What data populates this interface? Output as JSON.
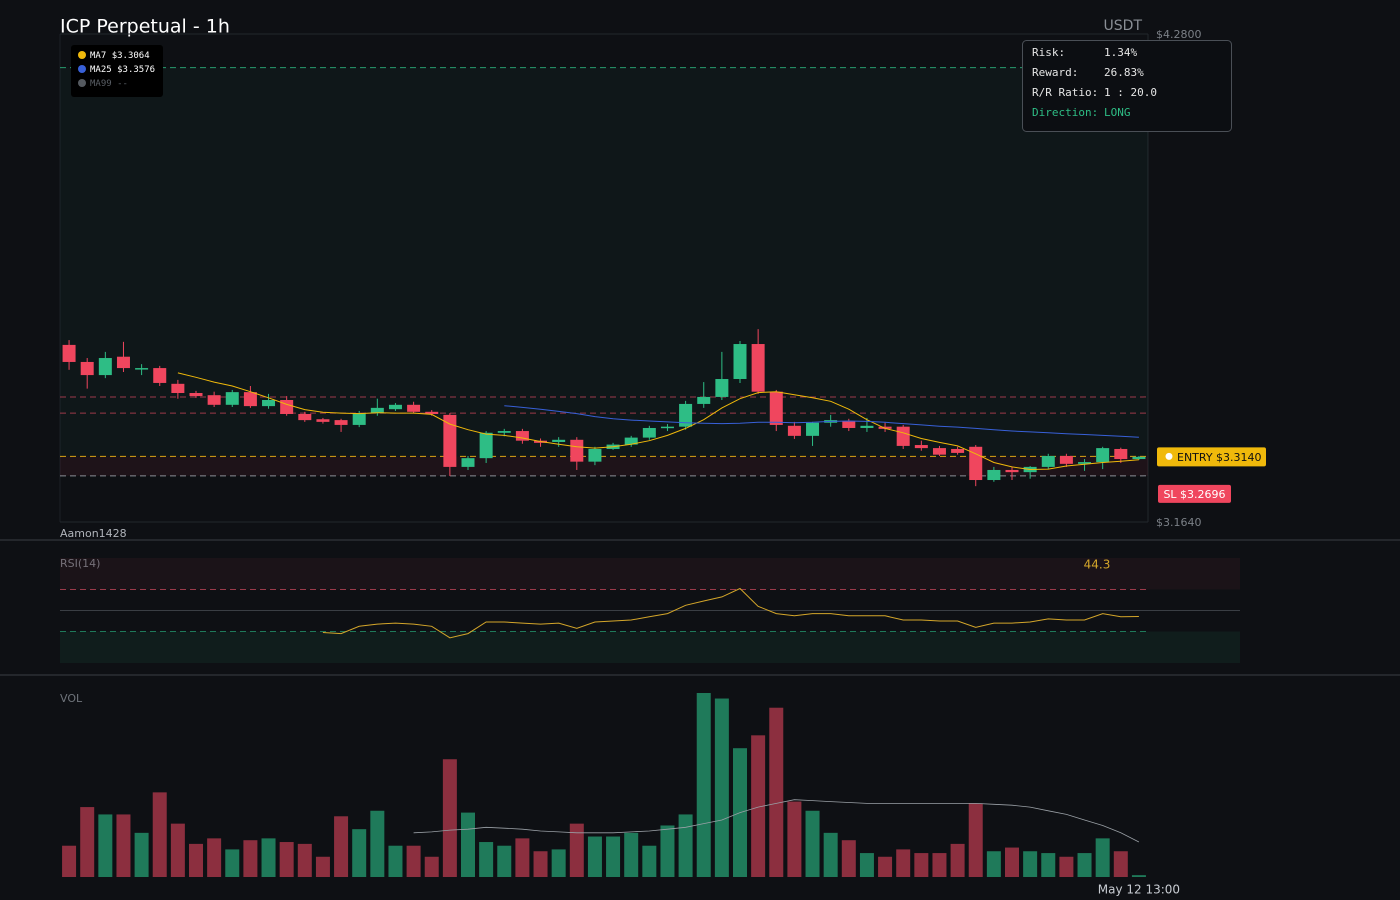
{
  "chart_data": [
    {
      "type": "candlestick",
      "title": "ICP Perpetual - 1h",
      "unit_label": "USDT",
      "watermark": "Aamon1428",
      "categories": [
        null,
        null,
        null,
        null,
        null,
        null,
        null,
        null,
        null,
        null,
        null,
        null,
        null,
        null,
        null,
        null,
        null,
        null,
        null,
        null,
        null,
        null,
        null,
        null,
        null,
        null,
        null,
        null,
        null,
        null,
        null,
        null,
        null,
        null,
        null,
        null,
        null,
        null,
        null,
        null,
        null,
        null,
        null,
        null,
        null,
        null,
        null,
        null,
        null,
        null,
        null,
        null,
        null,
        null,
        null,
        null,
        null,
        null,
        null,
        "May 12 13:00"
      ],
      "open": [
        3.569,
        3.53,
        3.5,
        3.542,
        3.514,
        3.516,
        3.48,
        3.459,
        3.454,
        3.432,
        3.461,
        3.429,
        3.443,
        3.411,
        3.399,
        3.397,
        3.386,
        3.413,
        3.422,
        3.432,
        3.416,
        3.409,
        3.29,
        3.31,
        3.368,
        3.372,
        3.35,
        3.347,
        3.352,
        3.302,
        3.331,
        3.341,
        3.357,
        3.379,
        3.382,
        3.434,
        3.45,
        3.491,
        3.571,
        3.462,
        3.384,
        3.361,
        3.391,
        3.395,
        3.379,
        3.382,
        3.382,
        3.34,
        3.333,
        3.331,
        3.336,
        3.26,
        3.283,
        3.278,
        3.29,
        3.315,
        3.297,
        3.301,
        3.331,
        3.308
      ],
      "high": [
        3.58,
        3.539,
        3.553,
        3.576,
        3.525,
        3.521,
        3.489,
        3.464,
        3.462,
        3.466,
        3.475,
        3.457,
        3.452,
        3.416,
        3.402,
        3.4,
        3.418,
        3.446,
        3.436,
        3.439,
        3.42,
        3.413,
        3.315,
        3.372,
        3.377,
        3.377,
        3.355,
        3.358,
        3.358,
        3.336,
        3.345,
        3.361,
        3.384,
        3.388,
        3.441,
        3.484,
        3.553,
        3.578,
        3.605,
        3.466,
        3.393,
        3.393,
        3.409,
        3.4,
        3.402,
        3.391,
        3.386,
        3.35,
        3.338,
        3.336,
        3.34,
        3.29,
        3.29,
        3.292,
        3.32,
        3.32,
        3.308,
        3.336,
        3.334,
        3.315
      ],
      "low": [
        3.512,
        3.469,
        3.493,
        3.507,
        3.5,
        3.475,
        3.446,
        3.448,
        3.427,
        3.427,
        3.425,
        3.423,
        3.407,
        3.393,
        3.389,
        3.37,
        3.381,
        3.407,
        3.418,
        3.413,
        3.407,
        3.269,
        3.283,
        3.299,
        3.36,
        3.343,
        3.336,
        3.336,
        3.283,
        3.294,
        3.329,
        3.336,
        3.352,
        3.372,
        3.375,
        3.425,
        3.443,
        3.482,
        3.457,
        3.372,
        3.354,
        3.338,
        3.382,
        3.372,
        3.37,
        3.37,
        3.331,
        3.327,
        3.315,
        3.318,
        3.246,
        3.256,
        3.26,
        3.263,
        3.285,
        3.29,
        3.281,
        3.285,
        3.299,
        3.306
      ],
      "close": [
        3.53,
        3.5,
        3.539,
        3.516,
        3.516,
        3.482,
        3.459,
        3.452,
        3.432,
        3.461,
        3.429,
        3.443,
        3.411,
        3.397,
        3.393,
        3.386,
        3.413,
        3.425,
        3.432,
        3.416,
        3.411,
        3.29,
        3.31,
        3.368,
        3.372,
        3.35,
        3.345,
        3.352,
        3.302,
        3.331,
        3.341,
        3.357,
        3.379,
        3.382,
        3.434,
        3.45,
        3.491,
        3.571,
        3.462,
        3.386,
        3.361,
        3.391,
        3.397,
        3.379,
        3.384,
        3.377,
        3.338,
        3.333,
        3.318,
        3.322,
        3.26,
        3.283,
        3.278,
        3.29,
        3.315,
        3.297,
        3.301,
        3.333,
        3.308,
        3.313
      ],
      "up_color": "#2ebd85",
      "down_color": "#f0465e",
      "ylim": [
        3.164,
        4.28
      ],
      "yticks": [
        {
          "value": 4.28,
          "label": "$4.2800"
        },
        {
          "value": 3.164,
          "label": "$3.1640"
        }
      ],
      "series": [
        {
          "name": "MA7",
          "color": "#f0b90b",
          "last_label": "$3.3064",
          "values": [
            null,
            null,
            null,
            null,
            null,
            null,
            3.505,
            3.495,
            3.484,
            3.475,
            3.462,
            3.448,
            3.433,
            3.421,
            3.415,
            3.413,
            3.412,
            3.414,
            3.413,
            3.413,
            3.41,
            3.388,
            3.375,
            3.365,
            3.362,
            3.356,
            3.348,
            3.342,
            3.336,
            3.333,
            3.336,
            3.342,
            3.35,
            3.362,
            3.378,
            3.398,
            3.425,
            3.446,
            3.46,
            3.462,
            3.455,
            3.448,
            3.44,
            3.422,
            3.398,
            3.378,
            3.368,
            3.355,
            3.346,
            3.338,
            3.32,
            3.3,
            3.29,
            3.284,
            3.285,
            3.292,
            3.296,
            3.3,
            3.303,
            3.3064
          ]
        },
        {
          "name": "MA25",
          "color": "#3860d8",
          "last_label": "$3.3576",
          "values": [
            null,
            null,
            null,
            null,
            null,
            null,
            null,
            null,
            null,
            null,
            null,
            null,
            null,
            null,
            null,
            null,
            null,
            null,
            null,
            null,
            null,
            null,
            null,
            null,
            3.43,
            3.426,
            3.422,
            3.417,
            3.412,
            3.405,
            3.4,
            3.397,
            3.395,
            3.393,
            3.391,
            3.39,
            3.389,
            3.39,
            3.392,
            3.392,
            3.391,
            3.392,
            3.394,
            3.395,
            3.394,
            3.392,
            3.389,
            3.386,
            3.383,
            3.381,
            3.378,
            3.375,
            3.372,
            3.37,
            3.368,
            3.366,
            3.364,
            3.362,
            3.36,
            3.3576
          ]
        },
        {
          "name": "MA99",
          "color": "#555a60",
          "last_label": "--",
          "values": [
            null,
            null,
            null,
            null,
            null,
            null,
            null,
            null,
            null,
            null,
            null,
            null,
            null,
            null,
            null,
            null,
            null,
            null,
            null,
            null,
            null,
            null,
            null,
            null,
            null,
            null,
            null,
            null,
            null,
            null,
            null,
            null,
            null,
            null,
            null,
            null,
            null,
            null,
            null,
            null,
            null,
            null,
            null,
            null,
            null,
            null,
            null,
            null,
            null,
            null,
            null,
            null,
            null,
            null,
            null,
            null,
            null,
            null,
            null,
            null
          ]
        }
      ],
      "take_profit": 4.2032,
      "dashed_levels": [
        3.45,
        3.413
      ],
      "levels": [
        {
          "value": 3.314,
          "label": "ENTRY $3.3140",
          "color": "#f0b90b",
          "line_color": "#d9a514",
          "text_color": "#111111"
        },
        {
          "value": 3.2696,
          "label": "SL $3.2696",
          "color": "#f0465e",
          "line_color": "#8a8f96",
          "text_color": "#ffffff"
        }
      ]
    },
    {
      "type": "line",
      "title": "RSI(14)",
      "color": "#d4a62a",
      "ylim": [
        0,
        100
      ],
      "overbought": 70,
      "oversold": 30,
      "midline": 50,
      "values": [
        null,
        null,
        null,
        null,
        null,
        null,
        null,
        null,
        null,
        null,
        null,
        null,
        null,
        null,
        29,
        28,
        35,
        37,
        38,
        37,
        35,
        24,
        28,
        39,
        39,
        38,
        37,
        38,
        33,
        39,
        40,
        41,
        44,
        47,
        55,
        59,
        63,
        71,
        54,
        47,
        45,
        47,
        47,
        45,
        45,
        45,
        41,
        41,
        40,
        40,
        34,
        38,
        38,
        39,
        42,
        41,
        41,
        47,
        44,
        44.3
      ]
    },
    {
      "type": "bar",
      "title": "VOL",
      "ylim": [
        0,
        100
      ],
      "up_color": "#1f7a5a",
      "down_color": "#8c2f3f",
      "ma_color": "#9aa0a6",
      "values": [
        17,
        38,
        34,
        34,
        24,
        46,
        29,
        18,
        21,
        15,
        20,
        21,
        19,
        18,
        11,
        33,
        26,
        36,
        17,
        17,
        11,
        64,
        35,
        19,
        17,
        21,
        14,
        15,
        29,
        22,
        22,
        24,
        17,
        28,
        34,
        100,
        97,
        70,
        77,
        92,
        41,
        36,
        24,
        20,
        13,
        11,
        15,
        13,
        13,
        18,
        40,
        14,
        16,
        14,
        13,
        11,
        13,
        21,
        14,
        1
      ],
      "ma": [
        null,
        null,
        null,
        null,
        null,
        null,
        null,
        null,
        null,
        null,
        null,
        null,
        null,
        null,
        null,
        null,
        null,
        null,
        null,
        24,
        24.5,
        25.5,
        26,
        27,
        26.5,
        26,
        25,
        24.5,
        24,
        24,
        24,
        24.5,
        25,
        26,
        27,
        29,
        31,
        35,
        38,
        40,
        42,
        41.5,
        41,
        40.5,
        40,
        40,
        40,
        40,
        40,
        40,
        40,
        39.5,
        39,
        38,
        36,
        34,
        31,
        28,
        24,
        19
      ]
    }
  ],
  "risk_panel": {
    "rows": [
      {
        "label": "Risk:",
        "value": "1.34%",
        "color": "#e6e6e6"
      },
      {
        "label": "Reward:",
        "value": "26.83%",
        "color": "#e6e6e6"
      },
      {
        "label": "R/R Ratio:",
        "value": "1 : 20.0",
        "color": "#e6e6e6"
      },
      {
        "label": "Direction:",
        "value": "LONG",
        "color": "#2ebd85"
      }
    ]
  }
}
